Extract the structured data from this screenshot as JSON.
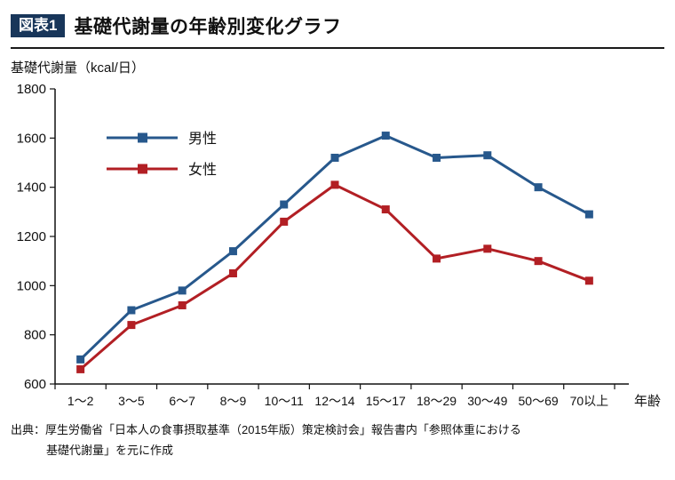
{
  "header": {
    "badge": "図表1",
    "title": "基礎代謝量の年齢別変化グラフ"
  },
  "colors": {
    "badge_bg": "#18365a",
    "axis": "#111111",
    "male": "#27588c",
    "female": "#b21f24"
  },
  "chart_data": {
    "type": "line",
    "title": "基礎代謝量の年齢別変化グラフ",
    "y_axis_title": "基礎代謝量（kcal/日）",
    "x_axis_title": "年齢",
    "categories": [
      "1〜2",
      "3〜5",
      "6〜7",
      "8〜9",
      "10〜11",
      "12〜14",
      "15〜17",
      "18〜29",
      "30〜49",
      "50〜69",
      "70以上"
    ],
    "series": [
      {
        "name": "男性",
        "color": "#27588c",
        "values": [
          700,
          900,
          980,
          1140,
          1330,
          1520,
          1610,
          1520,
          1530,
          1400,
          1290
        ]
      },
      {
        "name": "女性",
        "color": "#b21f24",
        "values": [
          660,
          840,
          920,
          1050,
          1260,
          1410,
          1310,
          1110,
          1150,
          1100,
          1020
        ]
      }
    ],
    "ylim": [
      600,
      1800
    ],
    "y_ticks": [
      600,
      800,
      1000,
      1200,
      1400,
      1600,
      1800
    ],
    "grid": false,
    "legend_position": "upper-left",
    "marker": "square"
  },
  "source": {
    "line1": "出典：厚生労働省「日本人の食事摂取基準（2015年版）策定検討会」報告書内「参照体重における",
    "line2": "基礎代謝量」を元に作成"
  }
}
